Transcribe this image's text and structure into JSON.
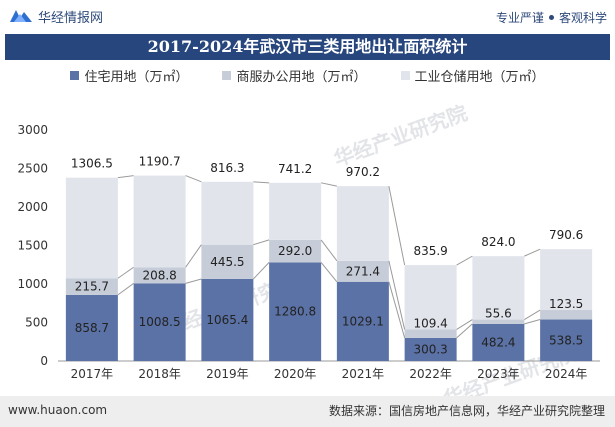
{
  "header": {
    "brand": "华经情报网",
    "slogan_left": "专业严谨",
    "slogan_right": "客观科学"
  },
  "watermark": "华经产业研究院",
  "chart_data": {
    "type": "bar",
    "stacked": true,
    "title": "2017-2024年武汉市三类用地出让面积统计",
    "categories": [
      "2017年",
      "2018年",
      "2019年",
      "2020年",
      "2021年",
      "2022年",
      "2023年",
      "2024年"
    ],
    "series": [
      {
        "name": "住宅用地（万㎡）",
        "values": [
          858.7,
          1008.5,
          1065.4,
          1280.8,
          1029.1,
          300.3,
          482.4,
          538.5
        ],
        "color": "#5b72a6"
      },
      {
        "name": "商服办公用地（万㎡）",
        "values": [
          215.7,
          208.8,
          445.5,
          292.0,
          271.4,
          109.4,
          55.6,
          123.5
        ],
        "color": "#c6cdd8"
      },
      {
        "name": "工业仓储用地（万㎡）",
        "values": [
          1306.5,
          1190.7,
          816.3,
          741.2,
          970.2,
          835.9,
          824.0,
          790.6
        ],
        "color": "#e2e4ec"
      }
    ],
    "value_labels": [
      [
        "858.7",
        "1008.5",
        "1065.4",
        "1280.8",
        "1029.1",
        "300.3",
        "482.4",
        "538.5"
      ],
      [
        "215.7",
        "208.8",
        "445.5",
        "292.0",
        "271.4",
        "109.4",
        "55.6",
        "123.5"
      ],
      [
        "1306.5",
        "1190.7",
        "816.3",
        "741.2",
        "970.2",
        "835.9",
        "824.0",
        "790.6"
      ]
    ],
    "ylim": [
      0,
      3000
    ],
    "yticks": [
      "0",
      "500",
      "1000",
      "1500",
      "2000",
      "2500",
      "3000"
    ],
    "legend_position": "top",
    "connector_lines": true
  },
  "footer": {
    "website": "www.huaon.com",
    "source": "数据来源：国信房地产信息网，华经产业研究院整理"
  }
}
